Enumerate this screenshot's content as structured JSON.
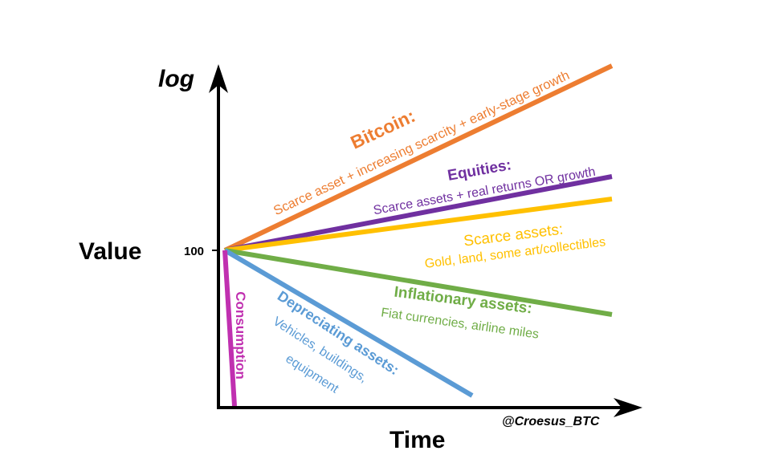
{
  "axes": {
    "y_scale_label": "log",
    "y_label": "Value",
    "y_tick": "100",
    "x_label": "Time",
    "credit": "@Croesus_BTC",
    "color": "#000000"
  },
  "series": [
    {
      "key": "bitcoin",
      "title": "Bitcoin:",
      "subtitle": "Scarce asset + increasing scarcity + early-stage growth",
      "color": "#ED7D31",
      "trend": "steep rise"
    },
    {
      "key": "equities",
      "title": "Equities:",
      "subtitle": "Scarce assets + real returns OR growth",
      "color": "#7030A0",
      "trend": "moderate rise"
    },
    {
      "key": "scarce",
      "title": "Scarce assets:",
      "subtitle": "Gold, land, some art/collectibles",
      "color": "#FFC000",
      "trend": "slight rise"
    },
    {
      "key": "inflationary",
      "title": "Inflationary assets:",
      "subtitle": "Fiat currencies, airline miles",
      "color": "#70AD47",
      "trend": "slow decline"
    },
    {
      "key": "depreciating",
      "title": "Depreciating assets:",
      "subtitle": "Vehicles, buildings,",
      "subtitle2": "equipment",
      "color": "#5B9BD5",
      "trend": "fast decline"
    },
    {
      "key": "consumption",
      "title": "Consumption",
      "color": "#C030B0",
      "trend": "immediate drop"
    }
  ]
}
